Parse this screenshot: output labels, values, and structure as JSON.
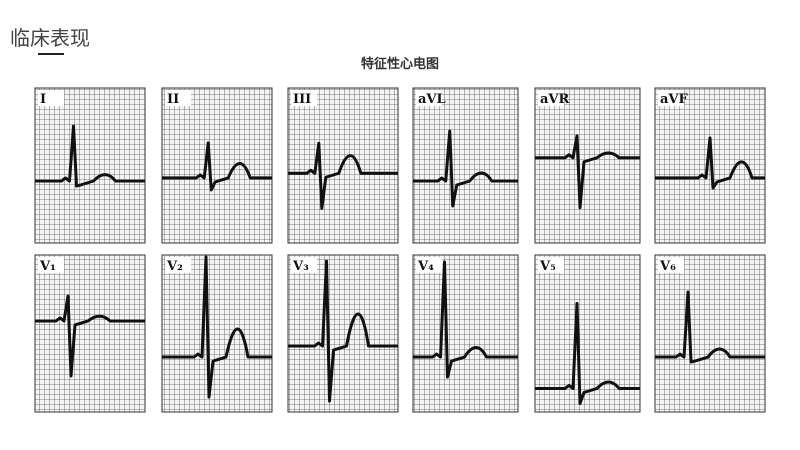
{
  "header": {
    "title": "临床表现"
  },
  "figure": {
    "caption": "特征性心电图",
    "leads": [
      "I",
      "II",
      "III",
      "aVL",
      "aVR",
      "aVF",
      "V₁",
      "V₂",
      "V₃",
      "V₄",
      "V₅",
      "V₆"
    ]
  }
}
